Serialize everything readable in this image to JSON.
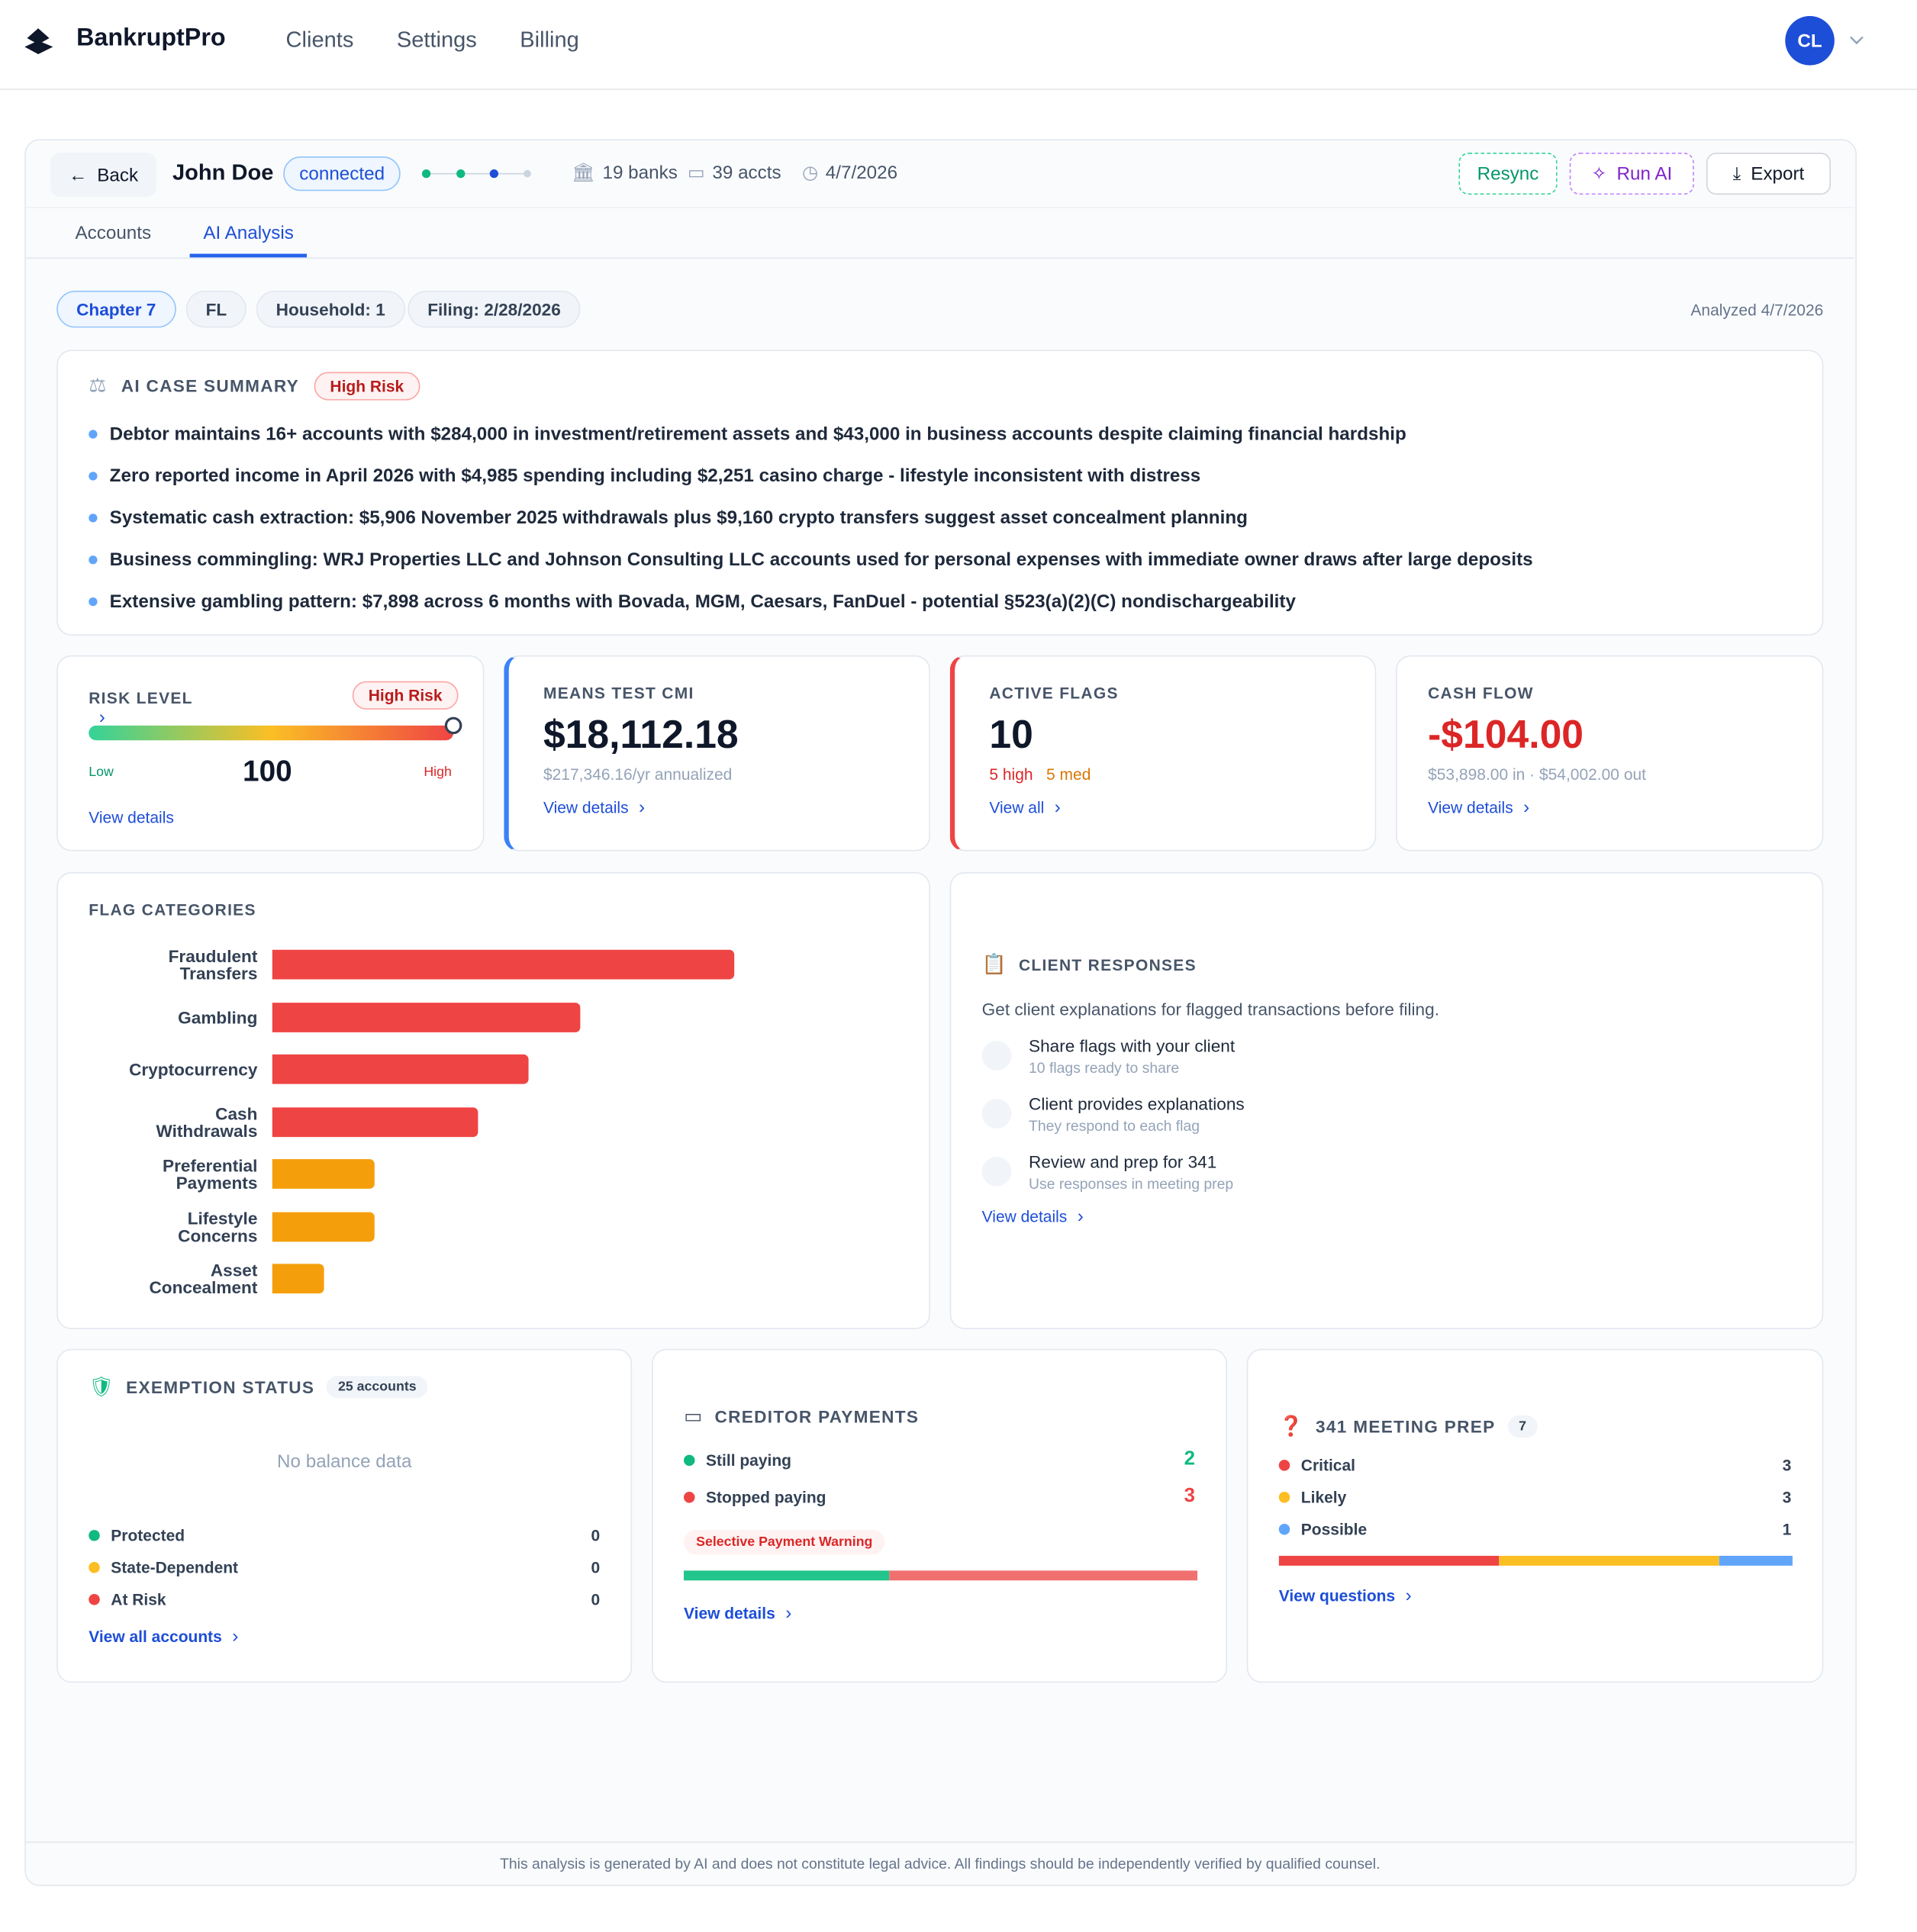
{
  "nav": {
    "brand": "BankruptPro",
    "links": [
      "Clients",
      "Settings",
      "Billing"
    ],
    "avatar": "CL"
  },
  "header": {
    "back": "Back",
    "client": "John Doe",
    "status": "connected",
    "banks": "19 banks",
    "accounts": "39 accts",
    "date": "4/7/2026",
    "actions": [
      "Resync",
      "Run AI",
      "Export"
    ]
  },
  "tabs": [
    "Accounts",
    "AI Analysis"
  ],
  "chips": [
    "Chapter 7",
    "FL",
    "Household: 1",
    "Filing: 2/28/2026"
  ],
  "analyzed": "Analyzed 4/7/2026",
  "summary": {
    "title": "AI CASE SUMMARY",
    "badge": "High Risk",
    "bullets": [
      "Debtor maintains 16+ accounts with $284,000 in investment/retirement assets and $43,000 in business accounts despite claiming financial hardship",
      "Zero reported income in April 2026 with $4,985 spending including $2,251 casino charge - lifestyle inconsistent with distress",
      "Systematic cash extraction: $5,906 November 2025 withdrawals plus $9,160 crypto transfers suggest asset concealment planning",
      "Business commingling: WRJ Properties LLC and Johnson Consulting LLC accounts used for personal expenses with immediate owner draws after large deposits",
      "Extensive gambling pattern: $7,898 across 6 months with Bovada, MGM, Caesars, FanDuel - potential §523(a)(2)(C) nondischargeability"
    ]
  },
  "risk": {
    "title": "RISK LEVEL",
    "badge": "High Risk",
    "value": 100,
    "range": [
      0,
      100
    ],
    "low": "Low",
    "high": "High",
    "link": "View details"
  },
  "means_test": {
    "title": "MEANS TEST CMI",
    "value": "$18,112.18",
    "sub": "$217,346.16/yr annualized",
    "link": "View details"
  },
  "flags": {
    "title": "ACTIVE FLAGS",
    "value": "10",
    "high": "5 high",
    "med": "5 med",
    "link": "View all"
  },
  "cash_flow": {
    "title": "CASH FLOW",
    "value": "-$104.00",
    "sub": "$53,898.00 in · $54,002.00 out",
    "link": "View details"
  },
  "flag_categories": {
    "title": "FLAG CATEGORIES",
    "categories": [
      "Fraudulent Transfers",
      "Gambling",
      "Cryptocurrency",
      "Cash Withdrawals",
      "Preferential Payments",
      "Lifestyle Concerns",
      "Asset Concealment"
    ],
    "values": [
      9,
      6,
      5,
      4,
      2,
      2,
      1
    ],
    "colors": [
      "#ef4444",
      "#ef4444",
      "#ef4444",
      "#ef4444",
      "#f59e0b",
      "#f59e0b",
      "#f59e0b"
    ],
    "xlim": [
      0,
      9
    ]
  },
  "client_responses": {
    "title": "CLIENT RESPONSES",
    "intro": "Get client explanations for flagged transactions before filing.",
    "steps": [
      {
        "title": "Share flags with your client",
        "sub": "10 flags ready to share"
      },
      {
        "title": "Client provides explanations",
        "sub": "They respond to each flag"
      },
      {
        "title": "Review and prep for 341",
        "sub": "Use responses in meeting prep"
      }
    ],
    "link": "View details"
  },
  "exemption": {
    "title": "EXEMPTION STATUS",
    "badge": "25 accounts",
    "empty": "No balance data",
    "rows": [
      {
        "label": "Protected",
        "count": 0,
        "color": "#10b981"
      },
      {
        "label": "State-Dependent",
        "count": 0,
        "color": "#fbbf24"
      },
      {
        "label": "At Risk",
        "count": 0,
        "color": "#ef4444"
      }
    ],
    "link": "View all accounts"
  },
  "creditor": {
    "title": "CREDITOR PAYMENTS",
    "rows": [
      {
        "label": "Still paying",
        "count": 2,
        "color": "#10b981"
      },
      {
        "label": "Stopped paying",
        "count": 3,
        "color": "#ef4444"
      }
    ],
    "bar_colors": [
      "#22c58b",
      "#f07070"
    ],
    "warning": "Selective Payment Warning",
    "link": "View details"
  },
  "meeting": {
    "title": "341 MEETING PREP",
    "badge": 7,
    "rows": [
      {
        "label": "Critical",
        "count": 3,
        "color": "#ef4444"
      },
      {
        "label": "Likely",
        "count": 3,
        "color": "#fbbf24"
      },
      {
        "label": "Possible",
        "count": 1,
        "color": "#60a5fa"
      }
    ],
    "link": "View questions"
  },
  "footer": "This analysis is generated by AI and does not constitute legal advice. All findings should be independently verified by qualified counsel."
}
